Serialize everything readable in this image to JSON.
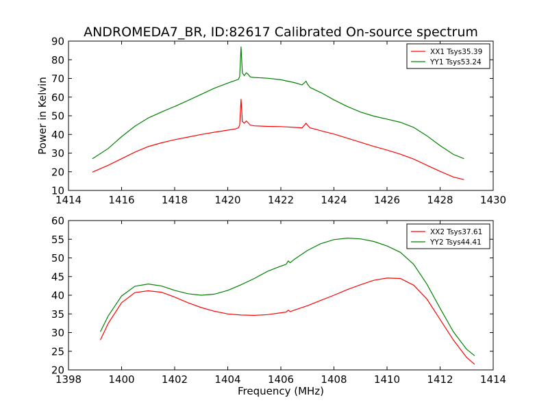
{
  "figure": {
    "title": "ANDROMEDA7_BR, ID:82617 Calibrated On-source spectrum",
    "xlabel": "Frequency (MHz)"
  },
  "chart_data": [
    {
      "type": "line",
      "title": "ANDROMEDA7_BR, ID:82617 Calibrated On-source spectrum",
      "xlabel": "",
      "ylabel": "Power in Kelvin",
      "xlim": [
        1414,
        1430
      ],
      "ylim": [
        10,
        90
      ],
      "xticks": [
        1414,
        1416,
        1418,
        1420,
        1422,
        1424,
        1426,
        1428,
        1430
      ],
      "yticks": [
        10,
        20,
        30,
        40,
        50,
        60,
        70,
        80,
        90
      ],
      "grid": false,
      "legend_position": "top-right",
      "series": [
        {
          "name": "XX1 Tsys35.39",
          "color": "#ff0000",
          "x": [
            1414.9,
            1415.5,
            1416.0,
            1416.5,
            1417.0,
            1417.5,
            1418.0,
            1418.5,
            1419.0,
            1419.5,
            1420.0,
            1420.3,
            1420.4,
            1420.45,
            1420.5,
            1420.55,
            1420.62,
            1420.7,
            1420.75,
            1420.85,
            1421.0,
            1421.5,
            1422.0,
            1422.5,
            1422.8,
            1422.95,
            1423.0,
            1423.1,
            1423.3,
            1423.5,
            1424.0,
            1424.5,
            1425.0,
            1425.5,
            1426.0,
            1426.5,
            1427.0,
            1427.5,
            1428.0,
            1428.5,
            1428.9
          ],
          "y": [
            19.8,
            23.5,
            27.0,
            30.5,
            33.5,
            35.5,
            37.2,
            38.6,
            40.0,
            41.2,
            42.3,
            43.0,
            43.5,
            45.0,
            59.0,
            47.0,
            46.0,
            47.2,
            46.5,
            45.0,
            44.6,
            44.3,
            44.2,
            43.8,
            43.5,
            46.0,
            45.0,
            43.5,
            42.8,
            42.0,
            40.2,
            38.0,
            35.8,
            33.6,
            31.6,
            29.4,
            26.8,
            23.5,
            20.2,
            17.2,
            15.8
          ]
        },
        {
          "name": "YY1 Tsys53.24",
          "color": "#008000",
          "x": [
            1414.9,
            1415.5,
            1416.0,
            1416.5,
            1417.0,
            1417.5,
            1418.0,
            1418.5,
            1419.0,
            1419.5,
            1420.0,
            1420.3,
            1420.4,
            1420.45,
            1420.5,
            1420.55,
            1420.62,
            1420.7,
            1420.75,
            1420.85,
            1421.0,
            1421.5,
            1422.0,
            1422.5,
            1422.8,
            1422.95,
            1423.0,
            1423.1,
            1423.3,
            1423.5,
            1424.0,
            1424.5,
            1425.0,
            1425.5,
            1426.0,
            1426.5,
            1427.0,
            1427.5,
            1428.0,
            1428.5,
            1428.9
          ],
          "y": [
            27.0,
            32.5,
            38.8,
            44.4,
            48.8,
            52.0,
            55.0,
            58.2,
            61.5,
            64.8,
            67.5,
            69.0,
            69.5,
            71.0,
            87.0,
            73.0,
            71.5,
            73.0,
            72.5,
            70.8,
            70.5,
            70.1,
            69.3,
            67.8,
            66.5,
            68.5,
            67.0,
            65.2,
            63.8,
            62.5,
            58.5,
            55.0,
            52.0,
            49.8,
            48.2,
            46.5,
            43.8,
            39.3,
            34.0,
            29.3,
            27.0
          ]
        }
      ]
    },
    {
      "type": "line",
      "title": "",
      "xlabel": "Frequency (MHz)",
      "ylabel": "",
      "xlim": [
        1398,
        1414
      ],
      "ylim": [
        20,
        60
      ],
      "xticks": [
        1398,
        1400,
        1402,
        1404,
        1406,
        1408,
        1410,
        1412,
        1414
      ],
      "yticks": [
        20,
        25,
        30,
        35,
        40,
        45,
        50,
        55,
        60
      ],
      "grid": false,
      "legend_position": "top-right",
      "series": [
        {
          "name": "XX2 Tsys37.61",
          "color": "#ff0000",
          "x": [
            1399.2,
            1399.5,
            1400.0,
            1400.5,
            1401.0,
            1401.5,
            1402.0,
            1402.5,
            1403.0,
            1403.5,
            1404.0,
            1404.5,
            1405.0,
            1405.5,
            1406.0,
            1406.2,
            1406.28,
            1406.35,
            1406.5,
            1407.0,
            1407.5,
            1408.0,
            1408.5,
            1409.0,
            1409.5,
            1410.0,
            1410.5,
            1411.0,
            1411.5,
            1412.0,
            1412.5,
            1413.0,
            1413.3
          ],
          "y": [
            28.0,
            32.5,
            38.0,
            40.7,
            41.2,
            40.8,
            39.5,
            38.0,
            36.7,
            35.7,
            35.0,
            34.7,
            34.6,
            34.8,
            35.3,
            35.5,
            36.0,
            35.6,
            36.0,
            37.2,
            38.6,
            40.0,
            41.5,
            42.8,
            44.0,
            44.6,
            44.5,
            42.7,
            39.0,
            33.5,
            28.0,
            23.3,
            21.5
          ]
        },
        {
          "name": "YY2 Tsys44.41",
          "color": "#008000",
          "x": [
            1399.2,
            1399.5,
            1400.0,
            1400.5,
            1401.0,
            1401.5,
            1402.0,
            1402.5,
            1403.0,
            1403.5,
            1404.0,
            1404.5,
            1405.0,
            1405.5,
            1406.0,
            1406.2,
            1406.28,
            1406.35,
            1406.5,
            1407.0,
            1407.5,
            1408.0,
            1408.5,
            1409.0,
            1409.5,
            1410.0,
            1410.5,
            1411.0,
            1411.5,
            1412.0,
            1412.5,
            1413.0,
            1413.3
          ],
          "y": [
            30.2,
            34.5,
            39.8,
            42.4,
            43.0,
            42.5,
            41.3,
            40.4,
            40.0,
            40.3,
            41.3,
            42.8,
            44.5,
            46.4,
            47.8,
            48.3,
            49.2,
            48.7,
            49.6,
            52.0,
            53.8,
            54.9,
            55.3,
            55.1,
            54.4,
            53.2,
            51.5,
            48.3,
            43.0,
            36.5,
            30.2,
            25.5,
            23.8
          ]
        }
      ]
    }
  ]
}
